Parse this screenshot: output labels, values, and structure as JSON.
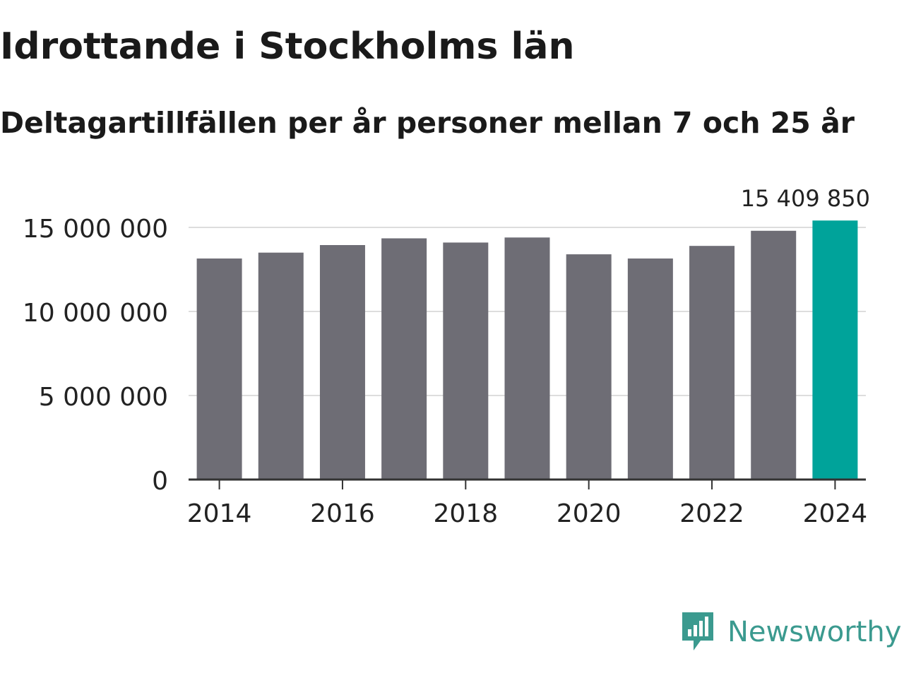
{
  "title": "Idrottande i Stockholms län",
  "subtitle": "Deltagartillfällen per år personer mellan 7 och 25 år",
  "brand": "Newsworthy",
  "colors": {
    "bar": "#6e6d75",
    "highlight": "#00a39a",
    "grid": "#dddddd",
    "axis": "#333333",
    "text": "#222222",
    "brand": "#3b9a8f"
  },
  "chart_data": {
    "type": "bar",
    "title": "Idrottande i Stockholms län",
    "subtitle": "Deltagartillfällen per år personer mellan 7 och 25 år",
    "xlabel": "",
    "ylabel": "",
    "categories": [
      "2014",
      "2015",
      "2016",
      "2017",
      "2018",
      "2019",
      "2020",
      "2021",
      "2022",
      "2023",
      "2024"
    ],
    "values": [
      13150000,
      13500000,
      13950000,
      14350000,
      14100000,
      14400000,
      13400000,
      13150000,
      13900000,
      14800000,
      15409850
    ],
    "highlight_index": 10,
    "highlight_label": "15 409 850",
    "ylim": [
      0,
      15000000
    ],
    "yticks": [
      0,
      5000000,
      10000000,
      15000000
    ],
    "ytick_labels": [
      "0",
      "5 000 000",
      "10 000 000",
      "15 000 000"
    ],
    "xticks": [
      "2014",
      "2016",
      "2018",
      "2020",
      "2022",
      "2024"
    ],
    "grid": true
  }
}
